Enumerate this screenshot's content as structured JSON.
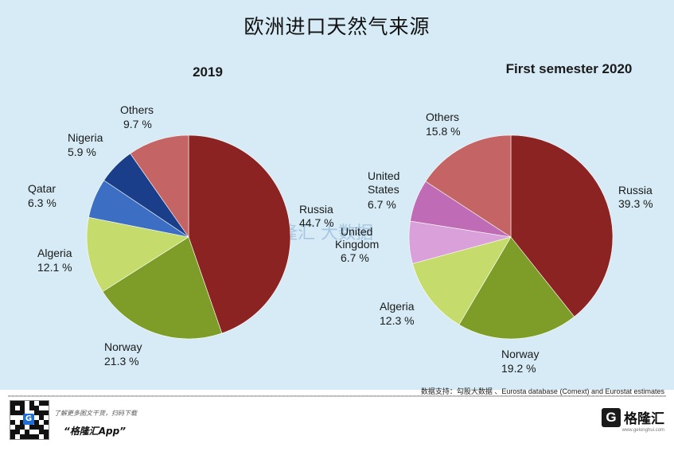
{
  "title": "欧洲进口天然气来源",
  "chart_data": [
    {
      "type": "pie",
      "title": "2019",
      "slices": [
        {
          "label": "Russia",
          "value": 44.7,
          "value_text": "44.7 %",
          "color": "#8b2323"
        },
        {
          "label": "Norway",
          "value": 21.3,
          "value_text": "21.3 %",
          "color": "#7e9d28"
        },
        {
          "label": "Algeria",
          "value": 12.1,
          "value_text": "12.1 %",
          "color": "#c5dc6c"
        },
        {
          "label": "Qatar",
          "value": 6.3,
          "value_text": "6.3 %",
          "color": "#3c6fc4"
        },
        {
          "label": "Nigeria",
          "value": 5.9,
          "value_text": "5.9 %",
          "color": "#1a3e8a"
        },
        {
          "label": "Others",
          "value": 9.7,
          "value_text": "9.7 %",
          "color": "#c46464"
        }
      ]
    },
    {
      "type": "pie",
      "title": "First semester 2020",
      "slices": [
        {
          "label": "Russia",
          "value": 39.3,
          "value_text": "39.3 %",
          "color": "#8b2323"
        },
        {
          "label": "Norway",
          "value": 19.2,
          "value_text": "19.2 %",
          "color": "#7e9d28"
        },
        {
          "label": "Algeria",
          "value": 12.3,
          "value_text": "12.3 %",
          "color": "#c5dc6c"
        },
        {
          "label": "United Kingdom",
          "value": 6.7,
          "value_text": "6.7 %",
          "color": "#d9a0d9"
        },
        {
          "label": "United States",
          "value": 6.7,
          "value_text": "6.7 %",
          "color": "#bf6bb5"
        },
        {
          "label": "Others",
          "value": 15.8,
          "value_text": "15.8 %",
          "color": "#c46464"
        }
      ]
    }
  ],
  "watermark": "格隆汇 大数据",
  "source": "数据支持：勾股大数据 、Eurosta database (Comext) and Eurostat estimates",
  "footer": {
    "promo": "了解更多图文干货，扫码下载",
    "app_name": "“格隆汇App”",
    "brand_cn": "格隆汇",
    "brand_url": "www.gelonghui.com"
  }
}
